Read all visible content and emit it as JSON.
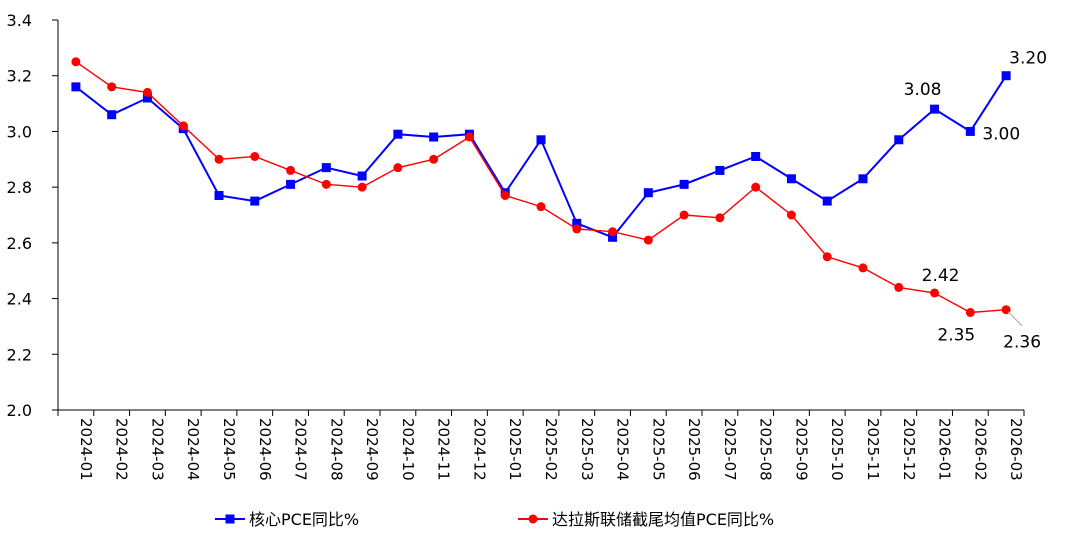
{
  "chart_data": {
    "type": "line",
    "title": "",
    "xlabel": "",
    "ylabel": "",
    "ylim": [
      2.0,
      3.4
    ],
    "yticks": [
      "2.0",
      "2.2",
      "2.4",
      "2.6",
      "2.8",
      "3.0",
      "3.2",
      "3.4"
    ],
    "grid": false,
    "legend_position": "bottom",
    "categories": [
      "2024-01",
      "2024-02",
      "2024-03",
      "2024-04",
      "2024-05",
      "2024-06",
      "2024-07",
      "2024-08",
      "2024-09",
      "2024-10",
      "2024-11",
      "2024-12",
      "2025-01",
      "2025-02",
      "2025-03",
      "2025-04",
      "2025-05",
      "2025-06",
      "2025-07",
      "2025-08",
      "2025-09",
      "2025-10",
      "2025-11",
      "2025-12",
      "2026-01",
      "2026-02",
      "2026-03"
    ],
    "series": [
      {
        "name": "核心PCE同比%",
        "color": "#0000ff",
        "marker": "square",
        "values": [
          3.16,
          3.06,
          3.12,
          3.01,
          2.77,
          2.75,
          2.81,
          2.87,
          2.84,
          2.99,
          2.98,
          2.99,
          2.78,
          2.97,
          2.67,
          2.62,
          2.78,
          2.81,
          2.86,
          2.91,
          2.83,
          2.75,
          2.83,
          2.97,
          3.08,
          3.0,
          3.2
        ]
      },
      {
        "name": "达拉斯联储截尾均值PCE同比%",
        "color": "#ff0000",
        "marker": "circle",
        "values": [
          3.25,
          3.16,
          3.14,
          3.02,
          2.9,
          2.91,
          2.86,
          2.81,
          2.8,
          2.87,
          2.9,
          2.98,
          2.77,
          2.73,
          2.65,
          2.64,
          2.61,
          2.7,
          2.69,
          2.8,
          2.7,
          2.55,
          2.51,
          2.44,
          2.42,
          2.35,
          2.36
        ]
      }
    ],
    "annotations": [
      {
        "series": 0,
        "index": 24,
        "text": "3.08"
      },
      {
        "series": 0,
        "index": 25,
        "text": "3.00"
      },
      {
        "series": 0,
        "index": 26,
        "text": "3.20"
      },
      {
        "series": 1,
        "index": 24,
        "text": "2.42"
      },
      {
        "series": 1,
        "index": 25,
        "text": "2.35"
      },
      {
        "series": 1,
        "index": 26,
        "text": "2.36"
      }
    ]
  }
}
